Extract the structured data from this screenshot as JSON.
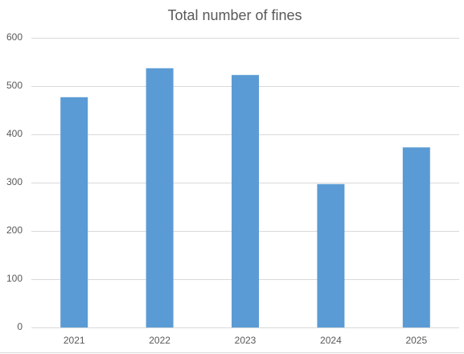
{
  "chart_data": {
    "type": "bar",
    "title": "Total number of fines",
    "categories": [
      "2021",
      "2022",
      "2023",
      "2024",
      "2025"
    ],
    "values": [
      477,
      537,
      523,
      297,
      373
    ],
    "color": "#5b9bd5",
    "ylim": [
      0,
      600
    ],
    "yticks": [
      0,
      100,
      200,
      300,
      400,
      500,
      600
    ],
    "grid": true
  }
}
